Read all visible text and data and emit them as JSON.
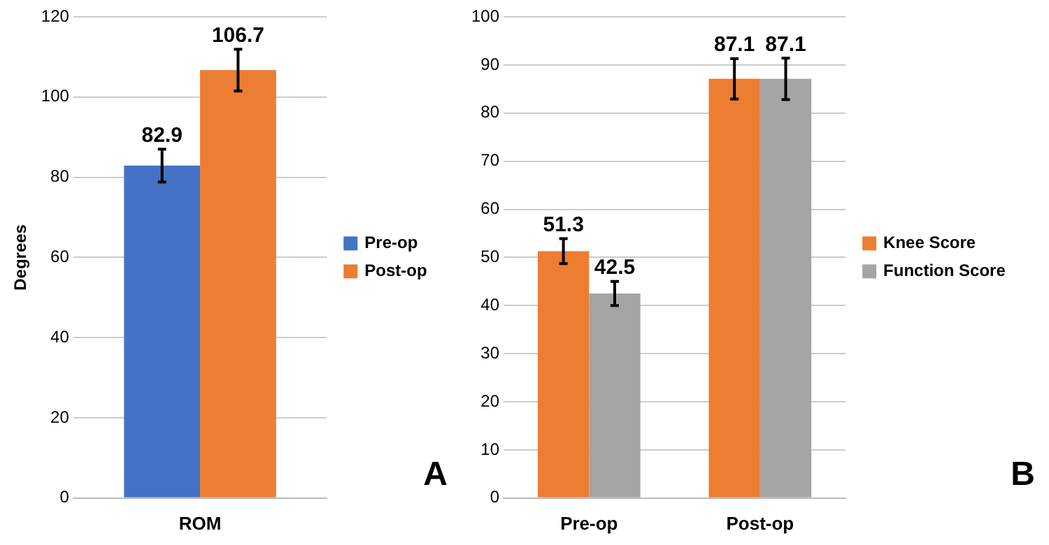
{
  "chart_data": [
    {
      "type": "bar",
      "categories": [
        "ROM"
      ],
      "ylabel": "Degrees",
      "ylim": [
        0,
        120
      ],
      "yticks": [
        0,
        20,
        40,
        60,
        80,
        100,
        120
      ],
      "grid": "y",
      "legend": "right",
      "data_labels": true,
      "annotations": [
        "A"
      ],
      "series": [
        {
          "name": "Pre-op",
          "color": "#4472c4",
          "values": [
            82.9
          ],
          "errors": [
            4.1
          ]
        },
        {
          "name": "Post-op",
          "color": "#ed7d31",
          "values": [
            106.7
          ],
          "errors": [
            5.2
          ]
        }
      ]
    },
    {
      "type": "bar",
      "categories": [
        "Pre-op",
        "Post-op"
      ],
      "ylim": [
        0,
        100
      ],
      "yticks": [
        0,
        10,
        20,
        30,
        40,
        50,
        60,
        70,
        80,
        90,
        100
      ],
      "grid": "y",
      "legend": "right",
      "data_labels": true,
      "annotations": [
        "B"
      ],
      "series": [
        {
          "name": "Knee Score",
          "color": "#ed7d31",
          "values": [
            51.3,
            87.1
          ],
          "errors": [
            2.6,
            4.2
          ]
        },
        {
          "name": "Function Score",
          "color": "#a5a5a5",
          "values": [
            42.5,
            87.1
          ],
          "errors": [
            2.5,
            4.3
          ]
        }
      ]
    }
  ]
}
